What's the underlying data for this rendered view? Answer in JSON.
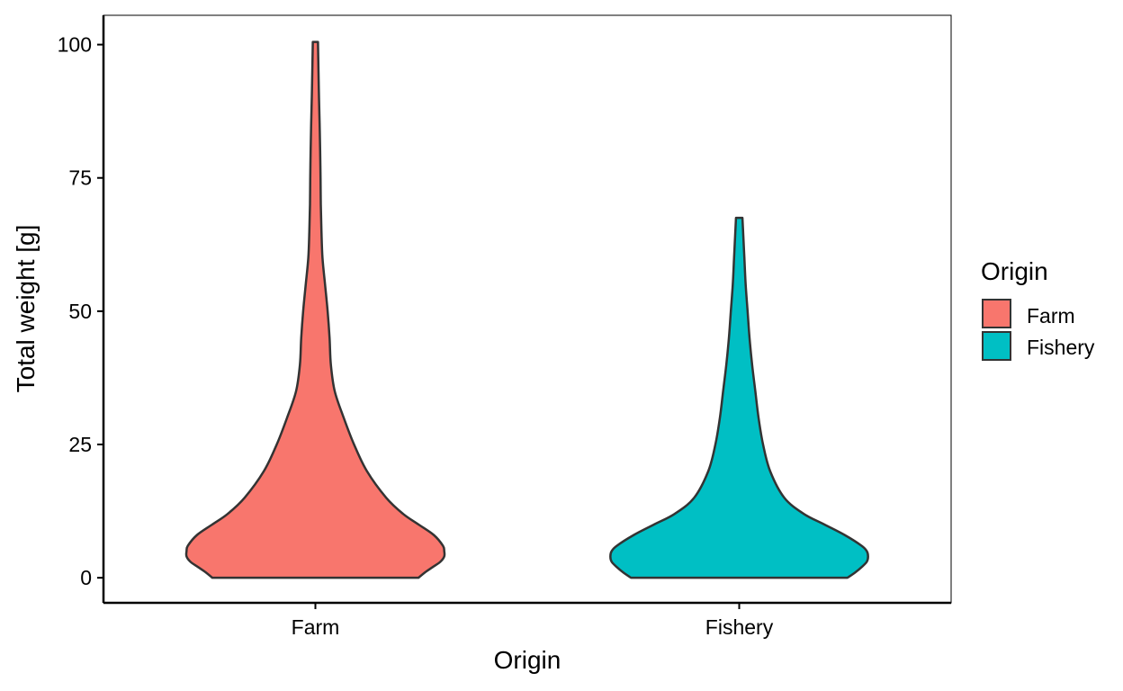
{
  "chart_data": {
    "type": "violin",
    "xlabel": "Origin",
    "ylabel": "Total weight  [g]",
    "ylim": [
      -4.7,
      105.5
    ],
    "yticks": [
      0,
      25,
      50,
      75,
      100
    ],
    "categories": [
      "Farm",
      "Fishery"
    ],
    "grid": false,
    "legend": {
      "title": "Origin",
      "placement": "right",
      "entries": [
        "Farm",
        "Fishery"
      ]
    },
    "colors": {
      "Farm": "#F8766D",
      "Fishery": "#00BFC4",
      "outline": "#333333"
    },
    "series": [
      {
        "name": "Farm",
        "range": [
          0,
          100.5
        ],
        "density_profile": [
          [
            0,
            0.8
          ],
          [
            1,
            0.85
          ],
          [
            2,
            0.91
          ],
          [
            3,
            0.97
          ],
          [
            4,
            1.0
          ],
          [
            5,
            1.0
          ],
          [
            6,
            0.99
          ],
          [
            8,
            0.92
          ],
          [
            10,
            0.8
          ],
          [
            12,
            0.68
          ],
          [
            15,
            0.55
          ],
          [
            20,
            0.4
          ],
          [
            25,
            0.3
          ],
          [
            30,
            0.22
          ],
          [
            35,
            0.15
          ],
          [
            40,
            0.12
          ],
          [
            45,
            0.11
          ],
          [
            50,
            0.095
          ],
          [
            55,
            0.075
          ],
          [
            60,
            0.055
          ],
          [
            65,
            0.047
          ],
          [
            70,
            0.042
          ],
          [
            75,
            0.04
          ],
          [
            80,
            0.037
          ],
          [
            85,
            0.033
          ],
          [
            90,
            0.028
          ],
          [
            95,
            0.024
          ],
          [
            100.5,
            0.02
          ]
        ]
      },
      {
        "name": "Fishery",
        "range": [
          0,
          67.5
        ],
        "density_profile": [
          [
            0,
            0.84
          ],
          [
            1,
            0.9
          ],
          [
            2,
            0.95
          ],
          [
            3,
            0.99
          ],
          [
            4,
            1.0
          ],
          [
            5,
            0.99
          ],
          [
            6,
            0.95
          ],
          [
            8,
            0.82
          ],
          [
            10,
            0.66
          ],
          [
            12,
            0.5
          ],
          [
            15,
            0.35
          ],
          [
            20,
            0.24
          ],
          [
            25,
            0.185
          ],
          [
            30,
            0.15
          ],
          [
            35,
            0.125
          ],
          [
            40,
            0.1
          ],
          [
            45,
            0.08
          ],
          [
            50,
            0.065
          ],
          [
            55,
            0.05
          ],
          [
            60,
            0.04
          ],
          [
            65,
            0.03
          ],
          [
            67.5,
            0.025
          ]
        ]
      }
    ]
  }
}
